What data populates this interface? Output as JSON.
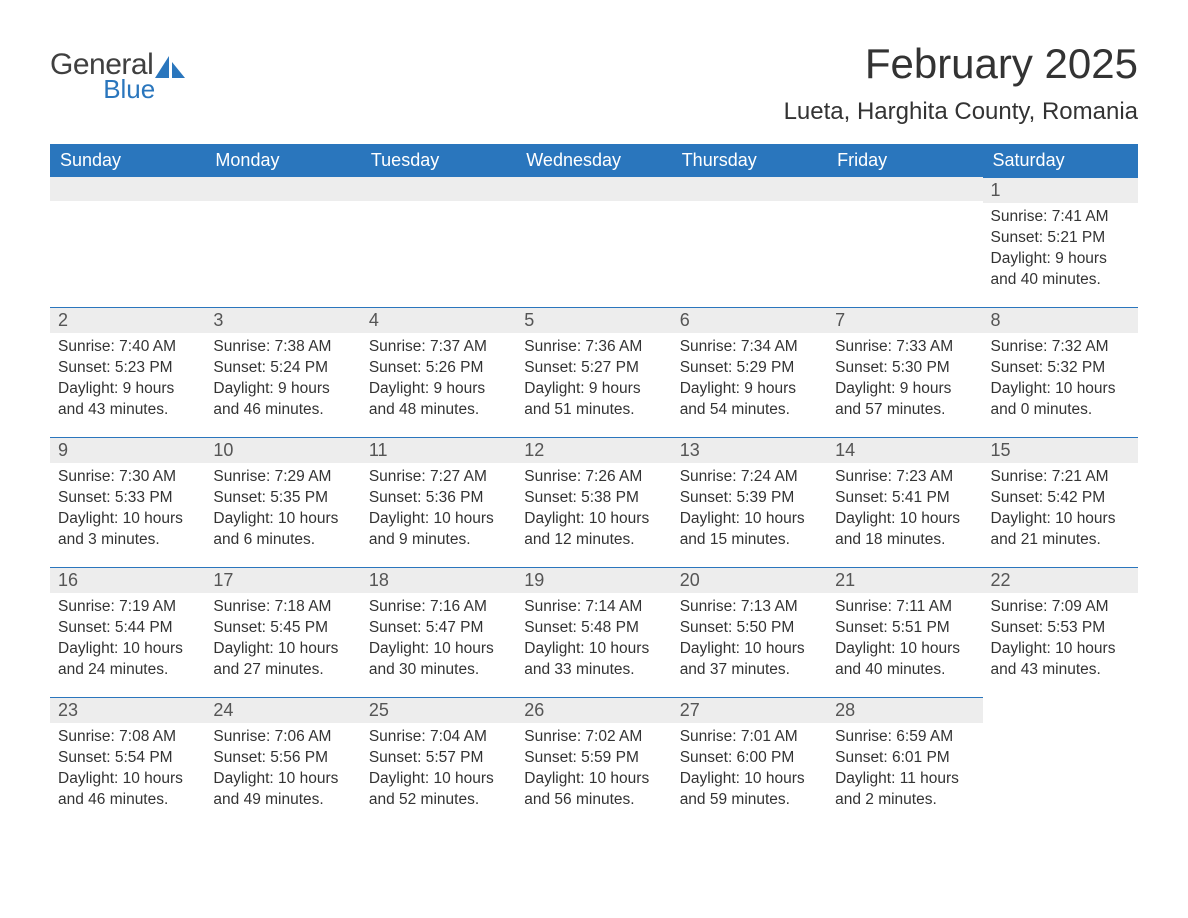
{
  "logo": {
    "text1": "General",
    "text2": "Blue",
    "text1_color": "#404040",
    "text2_color": "#2a76bd",
    "icon_color": "#2a76bd"
  },
  "title": "February 2025",
  "location": "Lueta, Harghita County, Romania",
  "colors": {
    "header_bg": "#2a76bd",
    "header_text": "#ffffff",
    "daybar_bg": "#ededed",
    "daybar_border": "#2a76bd",
    "body_text": "#333333",
    "background": "#ffffff"
  },
  "day_headers": [
    "Sunday",
    "Monday",
    "Tuesday",
    "Wednesday",
    "Thursday",
    "Friday",
    "Saturday"
  ],
  "weeks": [
    [
      null,
      null,
      null,
      null,
      null,
      null,
      {
        "n": "1",
        "sunrise": "Sunrise: 7:41 AM",
        "sunset": "Sunset: 5:21 PM",
        "daylight1": "Daylight: 9 hours",
        "daylight2": "and 40 minutes."
      }
    ],
    [
      {
        "n": "2",
        "sunrise": "Sunrise: 7:40 AM",
        "sunset": "Sunset: 5:23 PM",
        "daylight1": "Daylight: 9 hours",
        "daylight2": "and 43 minutes."
      },
      {
        "n": "3",
        "sunrise": "Sunrise: 7:38 AM",
        "sunset": "Sunset: 5:24 PM",
        "daylight1": "Daylight: 9 hours",
        "daylight2": "and 46 minutes."
      },
      {
        "n": "4",
        "sunrise": "Sunrise: 7:37 AM",
        "sunset": "Sunset: 5:26 PM",
        "daylight1": "Daylight: 9 hours",
        "daylight2": "and 48 minutes."
      },
      {
        "n": "5",
        "sunrise": "Sunrise: 7:36 AM",
        "sunset": "Sunset: 5:27 PM",
        "daylight1": "Daylight: 9 hours",
        "daylight2": "and 51 minutes."
      },
      {
        "n": "6",
        "sunrise": "Sunrise: 7:34 AM",
        "sunset": "Sunset: 5:29 PM",
        "daylight1": "Daylight: 9 hours",
        "daylight2": "and 54 minutes."
      },
      {
        "n": "7",
        "sunrise": "Sunrise: 7:33 AM",
        "sunset": "Sunset: 5:30 PM",
        "daylight1": "Daylight: 9 hours",
        "daylight2": "and 57 minutes."
      },
      {
        "n": "8",
        "sunrise": "Sunrise: 7:32 AM",
        "sunset": "Sunset: 5:32 PM",
        "daylight1": "Daylight: 10 hours",
        "daylight2": "and 0 minutes."
      }
    ],
    [
      {
        "n": "9",
        "sunrise": "Sunrise: 7:30 AM",
        "sunset": "Sunset: 5:33 PM",
        "daylight1": "Daylight: 10 hours",
        "daylight2": "and 3 minutes."
      },
      {
        "n": "10",
        "sunrise": "Sunrise: 7:29 AM",
        "sunset": "Sunset: 5:35 PM",
        "daylight1": "Daylight: 10 hours",
        "daylight2": "and 6 minutes."
      },
      {
        "n": "11",
        "sunrise": "Sunrise: 7:27 AM",
        "sunset": "Sunset: 5:36 PM",
        "daylight1": "Daylight: 10 hours",
        "daylight2": "and 9 minutes."
      },
      {
        "n": "12",
        "sunrise": "Sunrise: 7:26 AM",
        "sunset": "Sunset: 5:38 PM",
        "daylight1": "Daylight: 10 hours",
        "daylight2": "and 12 minutes."
      },
      {
        "n": "13",
        "sunrise": "Sunrise: 7:24 AM",
        "sunset": "Sunset: 5:39 PM",
        "daylight1": "Daylight: 10 hours",
        "daylight2": "and 15 minutes."
      },
      {
        "n": "14",
        "sunrise": "Sunrise: 7:23 AM",
        "sunset": "Sunset: 5:41 PM",
        "daylight1": "Daylight: 10 hours",
        "daylight2": "and 18 minutes."
      },
      {
        "n": "15",
        "sunrise": "Sunrise: 7:21 AM",
        "sunset": "Sunset: 5:42 PM",
        "daylight1": "Daylight: 10 hours",
        "daylight2": "and 21 minutes."
      }
    ],
    [
      {
        "n": "16",
        "sunrise": "Sunrise: 7:19 AM",
        "sunset": "Sunset: 5:44 PM",
        "daylight1": "Daylight: 10 hours",
        "daylight2": "and 24 minutes."
      },
      {
        "n": "17",
        "sunrise": "Sunrise: 7:18 AM",
        "sunset": "Sunset: 5:45 PM",
        "daylight1": "Daylight: 10 hours",
        "daylight2": "and 27 minutes."
      },
      {
        "n": "18",
        "sunrise": "Sunrise: 7:16 AM",
        "sunset": "Sunset: 5:47 PM",
        "daylight1": "Daylight: 10 hours",
        "daylight2": "and 30 minutes."
      },
      {
        "n": "19",
        "sunrise": "Sunrise: 7:14 AM",
        "sunset": "Sunset: 5:48 PM",
        "daylight1": "Daylight: 10 hours",
        "daylight2": "and 33 minutes."
      },
      {
        "n": "20",
        "sunrise": "Sunrise: 7:13 AM",
        "sunset": "Sunset: 5:50 PM",
        "daylight1": "Daylight: 10 hours",
        "daylight2": "and 37 minutes."
      },
      {
        "n": "21",
        "sunrise": "Sunrise: 7:11 AM",
        "sunset": "Sunset: 5:51 PM",
        "daylight1": "Daylight: 10 hours",
        "daylight2": "and 40 minutes."
      },
      {
        "n": "22",
        "sunrise": "Sunrise: 7:09 AM",
        "sunset": "Sunset: 5:53 PM",
        "daylight1": "Daylight: 10 hours",
        "daylight2": "and 43 minutes."
      }
    ],
    [
      {
        "n": "23",
        "sunrise": "Sunrise: 7:08 AM",
        "sunset": "Sunset: 5:54 PM",
        "daylight1": "Daylight: 10 hours",
        "daylight2": "and 46 minutes."
      },
      {
        "n": "24",
        "sunrise": "Sunrise: 7:06 AM",
        "sunset": "Sunset: 5:56 PM",
        "daylight1": "Daylight: 10 hours",
        "daylight2": "and 49 minutes."
      },
      {
        "n": "25",
        "sunrise": "Sunrise: 7:04 AM",
        "sunset": "Sunset: 5:57 PM",
        "daylight1": "Daylight: 10 hours",
        "daylight2": "and 52 minutes."
      },
      {
        "n": "26",
        "sunrise": "Sunrise: 7:02 AM",
        "sunset": "Sunset: 5:59 PM",
        "daylight1": "Daylight: 10 hours",
        "daylight2": "and 56 minutes."
      },
      {
        "n": "27",
        "sunrise": "Sunrise: 7:01 AM",
        "sunset": "Sunset: 6:00 PM",
        "daylight1": "Daylight: 10 hours",
        "daylight2": "and 59 minutes."
      },
      {
        "n": "28",
        "sunrise": "Sunrise: 6:59 AM",
        "sunset": "Sunset: 6:01 PM",
        "daylight1": "Daylight: 11 hours",
        "daylight2": "and 2 minutes."
      },
      null
    ]
  ]
}
